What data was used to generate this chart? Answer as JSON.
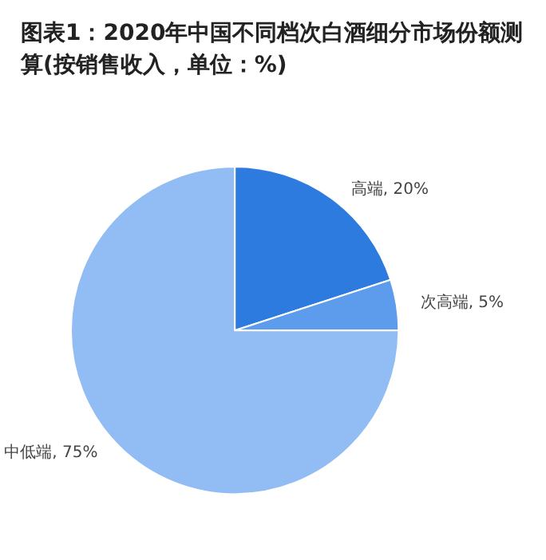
{
  "chart_data": {
    "type": "pie",
    "title": "图表1：2020年中国不同档次白酒细分市场份额测算(按销售收入，单位：%)",
    "categories": [
      "高端",
      "次高端",
      "中低端"
    ],
    "values": [
      20,
      5,
      75
    ],
    "colors": [
      "#2e7be0",
      "#5d9cec",
      "#92bdf4"
    ],
    "legend": false,
    "value_labels": [
      ", 20%",
      ", 5%",
      ", 75%"
    ]
  }
}
